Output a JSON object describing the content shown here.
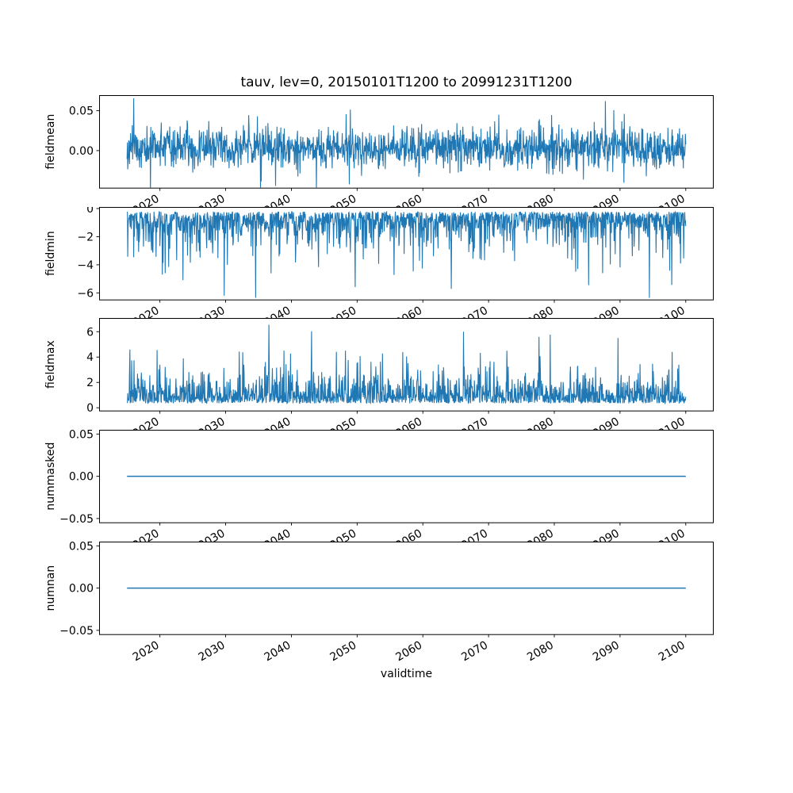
{
  "figure": {
    "title": "tauv, lev=0, 20150101T1200 to 20991231T1200",
    "xlabel": "validtime",
    "background": "#ffffff",
    "line_color": "#1f77b4",
    "axis_color": "#000000"
  },
  "chart_data": {
    "type": "line",
    "title": "tauv, lev=0, 20150101T1200 to 20991231T1200",
    "xlabel": "validtime",
    "legend": "none",
    "grid": false,
    "x_axis": {
      "xlim": [
        2010.75,
        2104.25
      ],
      "xticks": [
        2020,
        2030,
        2040,
        2050,
        2060,
        2070,
        2080,
        2090,
        2100
      ],
      "tick_label_rotation_deg": 30,
      "data_x_start": 2015.0,
      "data_x_end": 2100.0
    },
    "panels": [
      {
        "name": "fieldmean",
        "ylabel": "fieldmean",
        "ylim": [
          -0.047,
          0.0695
        ],
        "yticks": [
          {
            "v": 0.05,
            "label": "0.05"
          },
          {
            "v": 0.0,
            "label": "0.00"
          }
        ],
        "representation": "dense noisy time series; synthetic noise matching observed envelope",
        "band_typical": [
          -0.025,
          0.032
        ],
        "extremes": [
          -0.048,
          0.066
        ],
        "series": {
          "color": "#1f77b4",
          "x_start": 2015.0,
          "x_end": 2100.0,
          "n_points": 1600,
          "generator": {
            "kind": "gaussian-tail",
            "mean": 0.003,
            "std": 0.012,
            "up_tail_prob": 0.06,
            "up_tail_max": 0.032,
            "down_tail_prob": 0.04,
            "down_tail_max": 0.028,
            "seed": 11
          },
          "spikes": [
            [
              2016.0,
              0.0655
            ],
            [
              2087.8,
              0.062
            ],
            [
              2035.3,
              -0.047
            ]
          ]
        }
      },
      {
        "name": "fieldmin",
        "ylabel": "fieldmin",
        "ylim": [
          -6.5,
          0.113
        ],
        "yticks": [
          {
            "v": 0,
            "label": "0"
          },
          {
            "v": -2,
            "label": "−2"
          },
          {
            "v": -4,
            "label": "−4"
          },
          {
            "v": -6,
            "label": "−6"
          }
        ],
        "representation": "dense noisy time series; synthetic noise matching observed envelope",
        "band_typical": [
          -2.3,
          -0.2
        ],
        "extremes": [
          -6.2,
          -0.18
        ],
        "series": {
          "color": "#1f77b4",
          "x_start": 2015.0,
          "x_end": 2100.0,
          "n_points": 1600,
          "generator": {
            "kind": "exponential",
            "base": -0.22,
            "scale": 0.85,
            "sign": -1,
            "clamp": -6.35,
            "seed": 7
          },
          "spikes": [
            [
              2029.8,
              -6.2
            ],
            [
              2023.5,
              -5.1
            ],
            [
              2085.2,
              -5.45
            ]
          ]
        }
      },
      {
        "name": "fieldmax",
        "ylabel": "fieldmax",
        "ylim": [
          -0.25,
          7.08
        ],
        "yticks": [
          {
            "v": 6,
            "label": "6"
          },
          {
            "v": 4,
            "label": "4"
          },
          {
            "v": 2,
            "label": "2"
          },
          {
            "v": 0,
            "label": "0"
          }
        ],
        "representation": "dense noisy time series; synthetic noise matching observed envelope",
        "band_typical": [
          0.35,
          2.4
        ],
        "extremes": [
          0.3,
          6.55
        ],
        "series": {
          "color": "#1f77b4",
          "x_start": 2015.0,
          "x_end": 2100.0,
          "n_points": 1600,
          "generator": {
            "kind": "exponential",
            "base": 0.35,
            "scale": 0.8,
            "sign": 1,
            "clamp": 6.6,
            "seed": 23
          },
          "spikes": [
            [
              2036.6,
              6.55
            ],
            [
              2066.2,
              6.0
            ],
            [
              2077.7,
              5.6
            ],
            [
              2089.7,
              5.5
            ],
            [
              2015.4,
              4.6
            ]
          ]
        }
      },
      {
        "name": "nummasked",
        "ylabel": "nummasked",
        "ylim": [
          -0.055,
          0.055
        ],
        "yticks": [
          {
            "v": 0.05,
            "label": "0.05"
          },
          {
            "v": 0.0,
            "label": "0.00"
          },
          {
            "v": -0.05,
            "label": "−0.05"
          }
        ],
        "representation": "constant line",
        "band_typical": [
          0,
          0
        ],
        "extremes": [
          0,
          0
        ],
        "series": {
          "color": "#1f77b4",
          "x_start": 2015.0,
          "x_end": 2100.0,
          "constant": 0
        }
      },
      {
        "name": "numnan",
        "ylabel": "numnan",
        "ylim": [
          -0.055,
          0.055
        ],
        "yticks": [
          {
            "v": 0.05,
            "label": "0.05"
          },
          {
            "v": 0.0,
            "label": "0.00"
          },
          {
            "v": -0.05,
            "label": "−0.05"
          }
        ],
        "representation": "constant line",
        "band_typical": [
          0,
          0
        ],
        "extremes": [
          0,
          0
        ],
        "series": {
          "color": "#1f77b4",
          "x_start": 2015.0,
          "x_end": 2100.0,
          "constant": 0
        }
      }
    ]
  }
}
